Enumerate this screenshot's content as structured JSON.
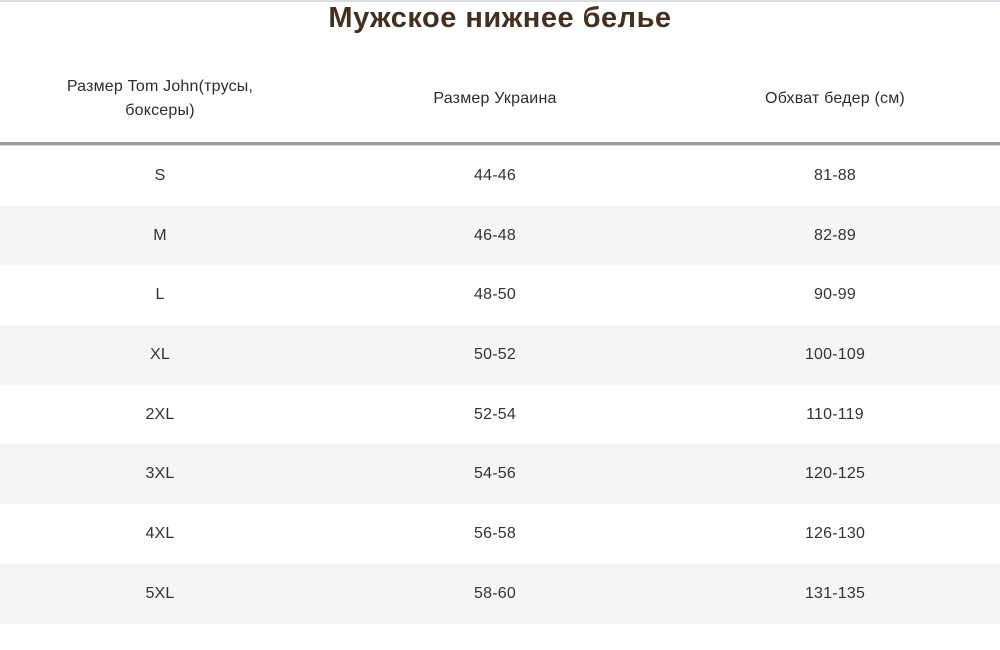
{
  "page": {
    "title": "Мужское нижнее белье"
  },
  "table": {
    "columns": [
      {
        "label": "Размер Tom John(трусы, боксеры)"
      },
      {
        "label": "Размер Украина"
      },
      {
        "label": "Обхват бедер (см)"
      }
    ],
    "rows": [
      {
        "size": "S",
        "ukraine": "44-46",
        "hips": "81-88"
      },
      {
        "size": "M",
        "ukraine": "46-48",
        "hips": "82-89"
      },
      {
        "size": "L",
        "ukraine": "48-50",
        "hips": "90-99"
      },
      {
        "size": "XL",
        "ukraine": "50-52",
        "hips": "100-109"
      },
      {
        "size": "2XL",
        "ukraine": "52-54",
        "hips": "110-119"
      },
      {
        "size": "3XL",
        "ukraine": "54-56",
        "hips": "120-125"
      },
      {
        "size": "4XL",
        "ukraine": "56-58",
        "hips": "126-130"
      },
      {
        "size": "5XL",
        "ukraine": "58-60",
        "hips": "131-135"
      }
    ]
  },
  "colors": {
    "title_text": "#45301f",
    "header_text": "#2d2d2d",
    "cell_text": "#333333",
    "zebra_stripe": "#f5f5f5",
    "header_divider": "#9c9c9c",
    "top_divider": "#d8dde6"
  }
}
